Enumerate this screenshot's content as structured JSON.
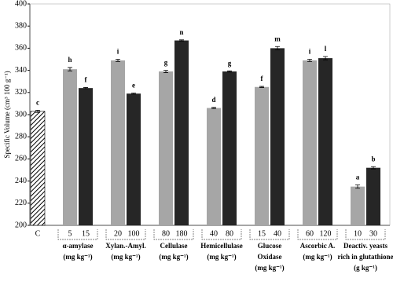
{
  "chart_data": {
    "type": "bar",
    "y_label": "Specific Volume (cm³ 100 g⁻¹)",
    "ylim": [
      200,
      400
    ],
    "yticks": [
      200,
      220,
      240,
      260,
      280,
      300,
      320,
      340,
      360,
      380,
      400
    ],
    "colors": [
      "#a6a6a6",
      "#262626"
    ],
    "groups": [
      {
        "label": [],
        "categories": [
          "C"
        ],
        "values": [
          303
        ],
        "errors": [
          1
        ],
        "letters": [
          "c"
        ],
        "hatched": true
      },
      {
        "label": [
          "α-amylase",
          "(mg kg⁻¹)"
        ],
        "categories": [
          "5",
          "15"
        ],
        "values": [
          341,
          324
        ],
        "errors": [
          1.5,
          0.5
        ],
        "letters": [
          "h",
          "f"
        ]
      },
      {
        "label": [
          "Xylan.-Amyl.",
          "(mg kg⁻¹)"
        ],
        "categories": [
          "20",
          "100"
        ],
        "values": [
          349,
          319
        ],
        "errors": [
          1,
          0.5
        ],
        "letters": [
          "i",
          "e"
        ]
      },
      {
        "label": [
          "Cellulase",
          "(mg kg⁻¹)"
        ],
        "categories": [
          "80",
          "180"
        ],
        "values": [
          339,
          367
        ],
        "errors": [
          1,
          0.5
        ],
        "letters": [
          "g",
          "n"
        ]
      },
      {
        "label": [
          "Hemicellulase",
          "(mg kg⁻¹)"
        ],
        "categories": [
          "40",
          "80"
        ],
        "values": [
          306,
          339
        ],
        "errors": [
          0.5,
          0.5
        ],
        "letters": [
          "d",
          "g"
        ]
      },
      {
        "label": [
          "Glucose",
          "Oxidase",
          "(mg kg⁻¹)"
        ],
        "categories": [
          "15",
          "40"
        ],
        "values": [
          325,
          360
        ],
        "errors": [
          0.5,
          1.5
        ],
        "letters": [
          "f",
          "m"
        ]
      },
      {
        "label": [
          "Ascorbic A.",
          "(mg kg⁻¹)"
        ],
        "categories": [
          "60",
          "120"
        ],
        "values": [
          349,
          351
        ],
        "errors": [
          1,
          1.5
        ],
        "letters": [
          "i",
          "l"
        ]
      },
      {
        "label": [
          "Deactiv. yeasts",
          "rich in glutathione",
          "(g kg⁻¹)"
        ],
        "categories": [
          "10",
          "30"
        ],
        "values": [
          235,
          252
        ],
        "errors": [
          1.5,
          1
        ],
        "letters": [
          "a",
          "b"
        ]
      }
    ]
  }
}
